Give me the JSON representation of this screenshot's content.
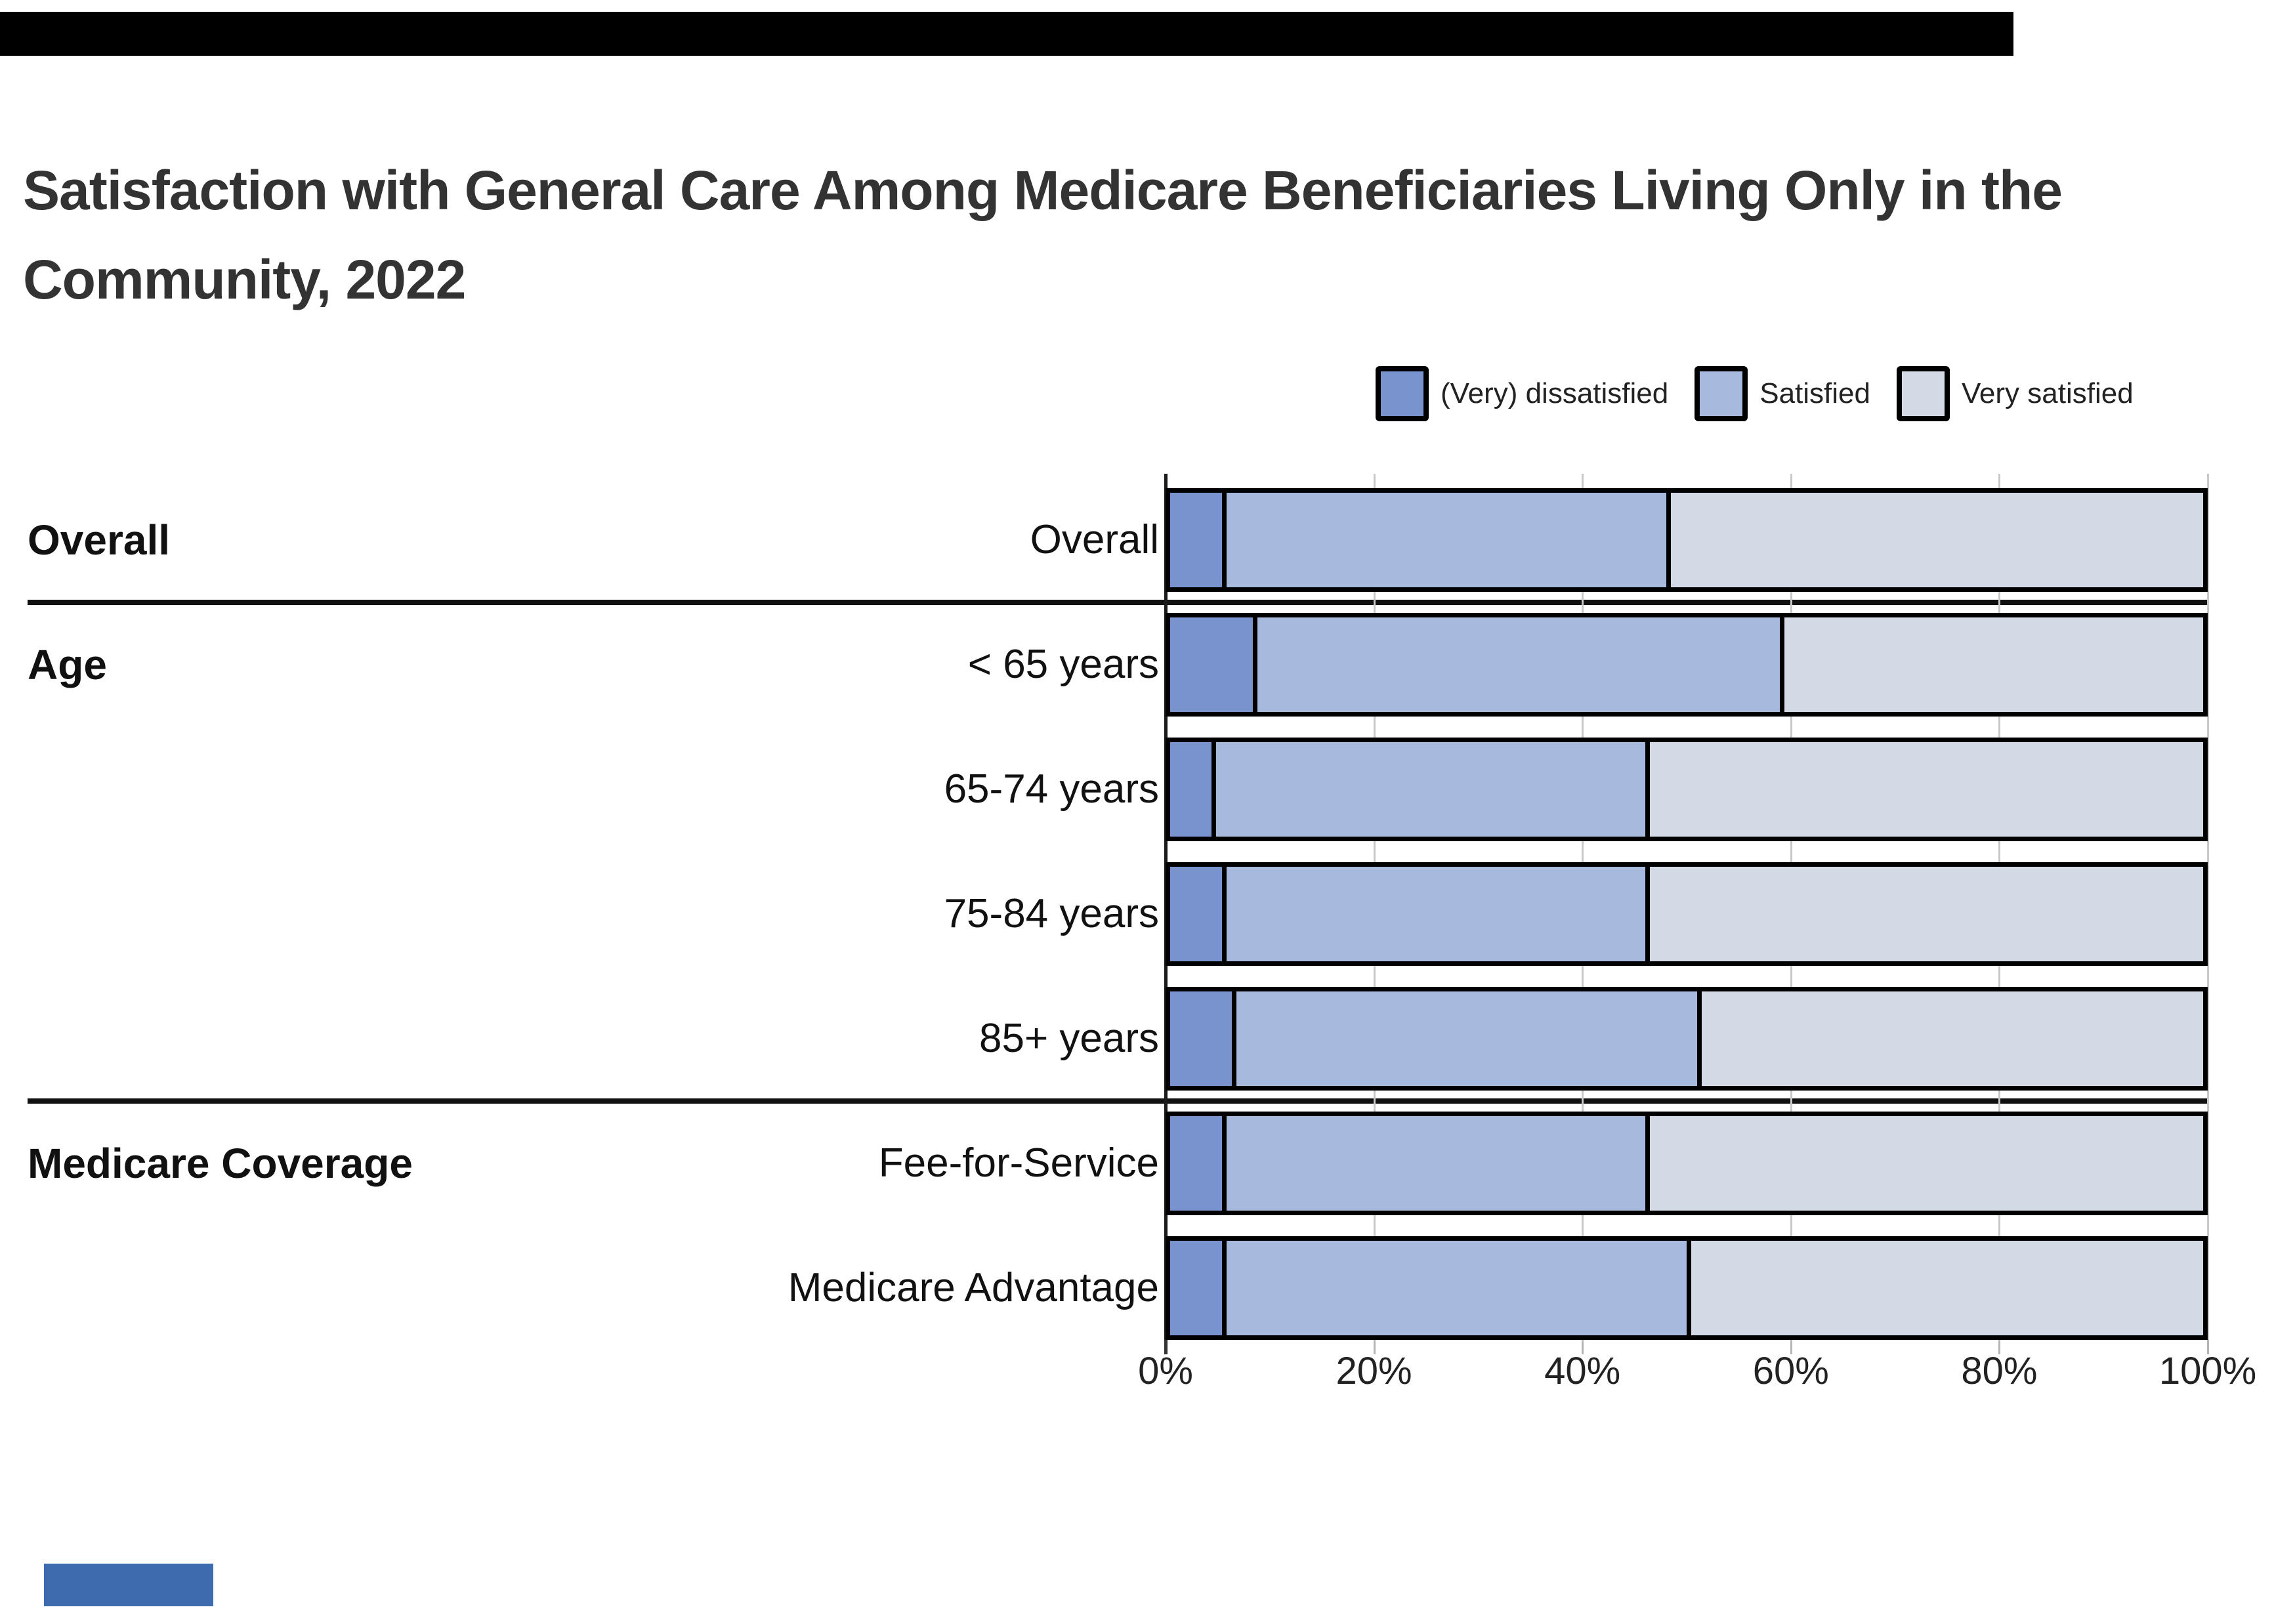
{
  "title": "Satisfaction with General Care Among Medicare Beneficiaries Living Only in the Community, 2022",
  "decorations": {
    "top_bar_color": "#000000",
    "bottom_logo_bar_color": "#3E6BAE"
  },
  "colors": {
    "dissatisfied": "#7893CE",
    "satisfied": "#A7B9DC",
    "very_satisfied": "#D3DAE6",
    "bar_border": "#000000",
    "gridline": "#c9c9c9",
    "title_text": "#333333",
    "label_text": "#111111"
  },
  "legend": [
    {
      "label": "(Very) dissatisfied",
      "color": "#7893CE"
    },
    {
      "label": "Satisfied",
      "color": "#A7B9DC"
    },
    {
      "label": "Very satisfied",
      "color": "#D3DAE6"
    }
  ],
  "chart_data": {
    "type": "bar",
    "orientation": "horizontal",
    "stacked": true,
    "title": "Satisfaction with General Care Among Medicare Beneficiaries Living Only in the Community, 2022",
    "xlabel": "",
    "ylabel": "",
    "x_range": [
      0,
      100
    ],
    "x_tick_labels": [
      "0%",
      "20%",
      "40%",
      "60%",
      "80%",
      "100%"
    ],
    "x_tick_values": [
      0,
      20,
      40,
      60,
      80,
      100
    ],
    "grid": true,
    "legend_position": "top-right",
    "groups": [
      {
        "label": "Overall",
        "row_indexes": [
          0
        ]
      },
      {
        "label": "Age",
        "row_indexes": [
          1,
          2,
          3,
          4
        ]
      },
      {
        "label": "Medicare Coverage",
        "row_indexes": [
          5,
          6
        ]
      }
    ],
    "categories": [
      "Overall",
      "< 65 years",
      "65-74 years",
      "75-84 years",
      "85+ years",
      "Fee-for-Service",
      "Medicare Advantage"
    ],
    "series": [
      {
        "name": "(Very) dissatisfied",
        "color": "#7893CE",
        "values": [
          5,
          8,
          4,
          5,
          6,
          5,
          5
        ]
      },
      {
        "name": "Satisfied",
        "color": "#A7B9DC",
        "values": [
          43,
          51,
          42,
          41,
          45,
          41,
          45
        ]
      },
      {
        "name": "Very satisfied",
        "color": "#D3DAE6",
        "values": [
          52,
          41,
          54,
          54,
          49,
          54,
          50
        ]
      }
    ]
  }
}
